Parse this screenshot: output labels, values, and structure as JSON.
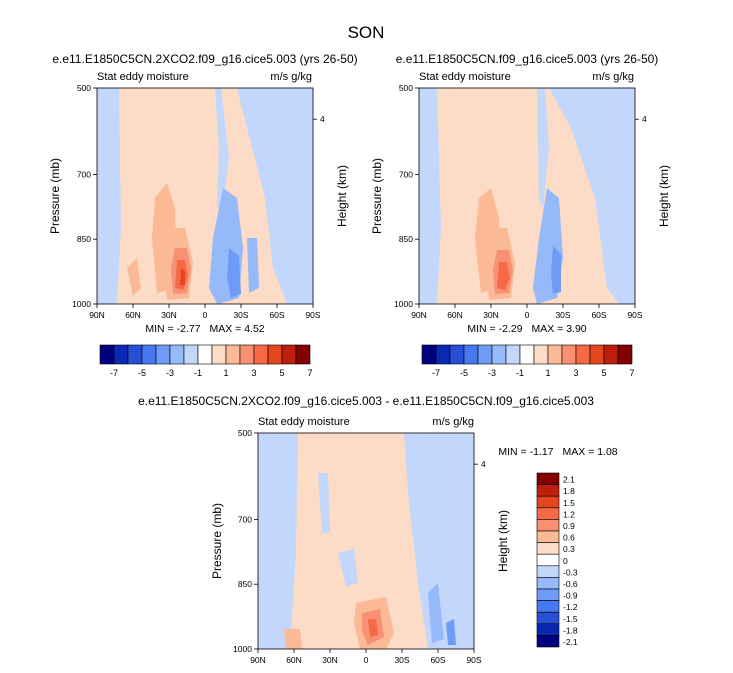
{
  "figure": {
    "title": "SON"
  },
  "palette": {
    "colors": [
      "#00007f",
      "#0a28b4",
      "#2850d7",
      "#4678f0",
      "#6e9bf5",
      "#96b9fa",
      "#c3d7fc",
      "#ffffff",
      "#fcdcc6",
      "#fbb996",
      "#f89173",
      "#f56946",
      "#e6461e",
      "#be1e0a",
      "#820000"
    ]
  },
  "chart_data": [
    {
      "type": "heatmap",
      "title": "e.e11.E1850C5CN.2XCO2.f09_g16.cice5.003 (yrs 26-50)",
      "left_label": "Stat eddy moisture",
      "right_label": "m/s g/kg",
      "ylabel": "Pressure (mb)",
      "ylabel_right": "Height (km)",
      "x_ticks": [
        "90N",
        "60N",
        "30N",
        "0",
        "30S",
        "60S",
        "90S"
      ],
      "y_ticks": [
        "500",
        "700",
        "850",
        "1000"
      ],
      "y_right_ticks": [
        "4"
      ],
      "min_label": "MIN = ",
      "min": "-2.77",
      "max_label": "MAX = ",
      "max": "4.52",
      "colorbar_levels": [
        -7,
        -6,
        -5,
        -4,
        -3,
        -2,
        -1,
        0,
        1,
        2,
        3,
        4,
        5,
        6,
        7
      ],
      "colorbar_labels": [
        "-7",
        "-5",
        "-3",
        "-1",
        "1",
        "3",
        "5",
        "7"
      ]
    },
    {
      "type": "heatmap",
      "title": "e.e11.E1850C5CN.f09_g16.cice5.003 (yrs 26-50)",
      "left_label": "Stat eddy moisture",
      "right_label": "m/s g/kg",
      "ylabel": "Pressure (mb)",
      "ylabel_right": "Height (km)",
      "x_ticks": [
        "90N",
        "60N",
        "30N",
        "0",
        "30S",
        "60S",
        "90S"
      ],
      "y_ticks": [
        "500",
        "700",
        "850",
        "1000"
      ],
      "y_right_ticks": [
        "4"
      ],
      "min_label": "MIN = ",
      "min": "-2.29",
      "max_label": "MAX = ",
      "max": "3.90",
      "colorbar_levels": [
        -7,
        -6,
        -5,
        -4,
        -3,
        -2,
        -1,
        0,
        1,
        2,
        3,
        4,
        5,
        6,
        7
      ],
      "colorbar_labels": [
        "-7",
        "-5",
        "-3",
        "-1",
        "1",
        "3",
        "5",
        "7"
      ]
    },
    {
      "type": "heatmap",
      "title": "e.e11.E1850C5CN.2XCO2.f09_g16.cice5.003 - e.e11.E1850C5CN.f09_g16.cice5.003",
      "left_label": "Stat eddy moisture",
      "right_label": "m/s g/kg",
      "ylabel": "Pressure (mb)",
      "ylabel_right": "Height (km)",
      "x_ticks": [
        "90N",
        "60N",
        "30N",
        "0",
        "30S",
        "60S",
        "90S"
      ],
      "y_ticks": [
        "500",
        "700",
        "850",
        "1000"
      ],
      "y_right_ticks": [
        "4"
      ],
      "min_label": "MIN = ",
      "min": "-1.17",
      "max_label": "MAX = ",
      "max": "1.08",
      "colorbar_levels": [
        -2.1,
        -1.8,
        -1.5,
        -1.2,
        -0.9,
        -0.6,
        -0.3,
        0,
        0.3,
        0.6,
        0.9,
        1.2,
        1.5,
        1.8,
        2.1
      ],
      "colorbar_labels": [
        "2.1",
        "1.8",
        "1.5",
        "1.2",
        "0.9",
        "0.6",
        "0.3",
        "0",
        "-0.3",
        "-0.6",
        "-0.9",
        "-1.2",
        "-1.5",
        "-1.8",
        "-2.1"
      ]
    }
  ]
}
